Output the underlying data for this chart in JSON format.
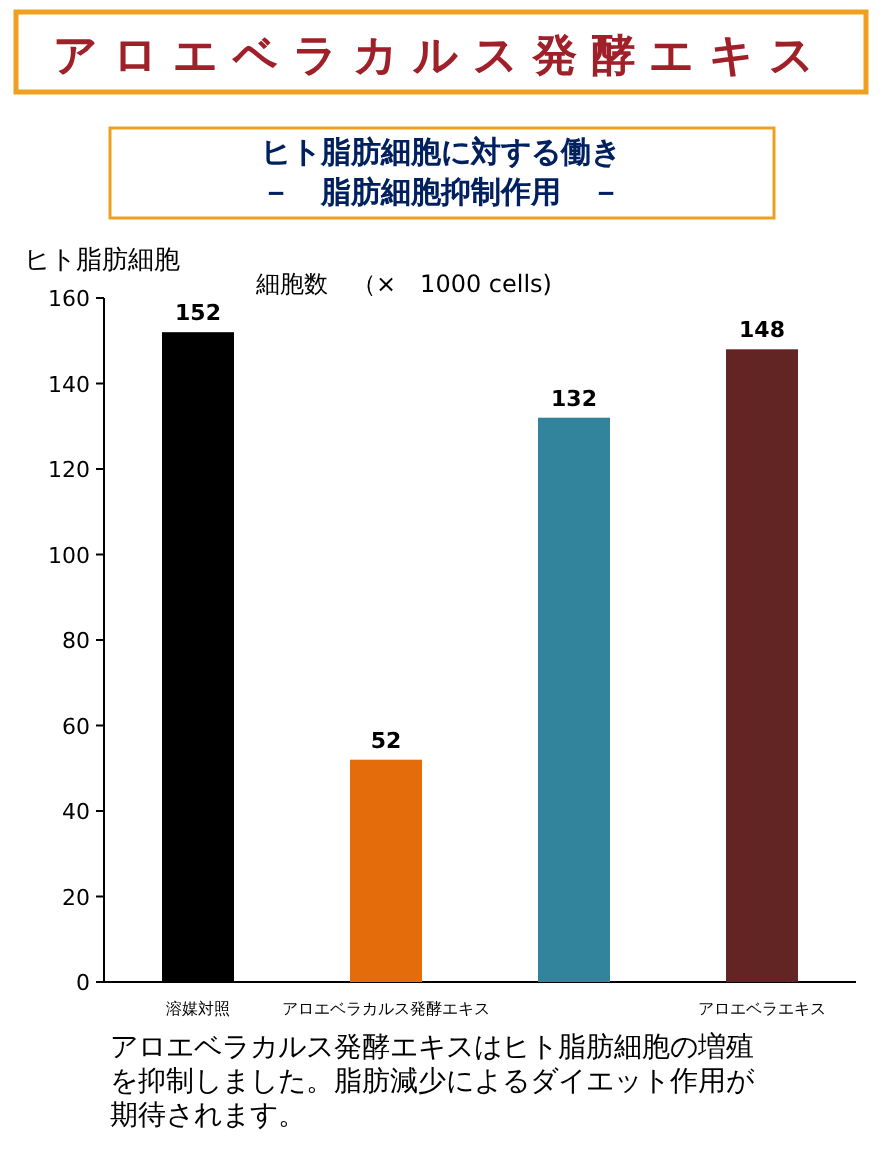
{
  "chart_data": {
    "type": "bar",
    "title": "アロエベラカルス発酵エキス",
    "subtitle": "ヒト脂肪細胞に対する働き",
    "ylabel": "ヒト脂肪細胞",
    "categories": [
      "溶媒対照",
      "アロエベラカルス発酵エキス",
      null,
      "アロエベラエキス"
    ],
    "values": [
      152,
      52,
      132,
      148
    ],
    "colors": [
      "#000000",
      "#e46c0a",
      "#31849b",
      "#632523"
    ],
    "ylim": [
      0,
      160
    ],
    "yticks": [
      0,
      20,
      40,
      60,
      80,
      100,
      120,
      140,
      160
    ],
    "data_labels": true,
    "annotations": [
      "細胞数　（×　1000 cells)",
      "－　脂肪細胞抑制作用　－",
      "アロエベラカルス発酵エキスはヒト脂肪細胞の増殖を抑制しました。脂肪減少によるダイエット作用が期待されます。"
    ]
  }
}
